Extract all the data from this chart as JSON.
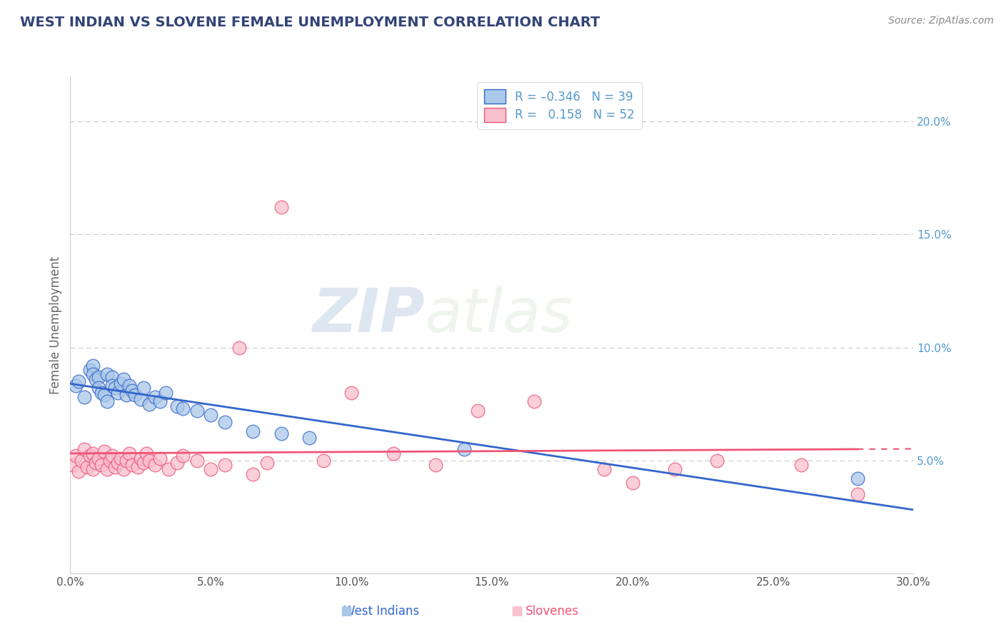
{
  "title": "WEST INDIAN VS SLOVENE FEMALE UNEMPLOYMENT CORRELATION CHART",
  "source": "Source: ZipAtlas.com",
  "ylabel": "Female Unemployment",
  "xlim": [
    0.0,
    0.3
  ],
  "ylim": [
    0.0,
    0.22
  ],
  "xticks": [
    0.0,
    0.05,
    0.1,
    0.15,
    0.2,
    0.25,
    0.3
  ],
  "xticklabels": [
    "0.0%",
    "5.0%",
    "10.0%",
    "15.0%",
    "20.0%",
    "25.0%",
    "30.0%"
  ],
  "yticks_right": [
    0.05,
    0.1,
    0.15,
    0.2
  ],
  "yticklabels_right": [
    "5.0%",
    "10.0%",
    "15.0%",
    "20.0%"
  ],
  "grid_color": "#cccccc",
  "watermark_zip": "ZIP",
  "watermark_atlas": "atlas",
  "color_blue": "#aac8e8",
  "color_pink": "#f9c0ce",
  "line_blue": "#3366cc",
  "line_pink": "#ee5577",
  "bg_color": "#ffffff",
  "title_color": "#334477",
  "source_color": "#888888",
  "right_tick_color": "#5599cc",
  "west_indians_x": [
    0.002,
    0.003,
    0.005,
    0.007,
    0.008,
    0.008,
    0.009,
    0.01,
    0.01,
    0.011,
    0.012,
    0.013,
    0.013,
    0.015,
    0.015,
    0.016,
    0.017,
    0.018,
    0.019,
    0.02,
    0.021,
    0.022,
    0.023,
    0.025,
    0.026,
    0.028,
    0.03,
    0.032,
    0.034,
    0.038,
    0.04,
    0.045,
    0.05,
    0.055,
    0.065,
    0.075,
    0.085,
    0.14,
    0.28
  ],
  "west_indians_y": [
    0.083,
    0.085,
    0.078,
    0.09,
    0.092,
    0.088,
    0.086,
    0.087,
    0.082,
    0.08,
    0.079,
    0.088,
    0.076,
    0.087,
    0.083,
    0.082,
    0.08,
    0.084,
    0.086,
    0.079,
    0.083,
    0.081,
    0.079,
    0.077,
    0.082,
    0.075,
    0.078,
    0.076,
    0.08,
    0.074,
    0.073,
    0.072,
    0.07,
    0.067,
    0.063,
    0.062,
    0.06,
    0.055,
    0.042
  ],
  "slovenes_x": [
    0.001,
    0.002,
    0.003,
    0.004,
    0.005,
    0.006,
    0.007,
    0.008,
    0.008,
    0.009,
    0.01,
    0.011,
    0.012,
    0.013,
    0.014,
    0.015,
    0.016,
    0.017,
    0.018,
    0.019,
    0.02,
    0.021,
    0.022,
    0.024,
    0.025,
    0.026,
    0.027,
    0.028,
    0.03,
    0.032,
    0.035,
    0.038,
    0.04,
    0.045,
    0.05,
    0.055,
    0.06,
    0.065,
    0.07,
    0.075,
    0.09,
    0.1,
    0.115,
    0.13,
    0.145,
    0.165,
    0.19,
    0.2,
    0.215,
    0.23,
    0.26,
    0.28
  ],
  "slovenes_y": [
    0.048,
    0.052,
    0.045,
    0.05,
    0.055,
    0.047,
    0.052,
    0.046,
    0.053,
    0.049,
    0.051,
    0.048,
    0.054,
    0.046,
    0.05,
    0.052,
    0.047,
    0.049,
    0.051,
    0.046,
    0.05,
    0.053,
    0.048,
    0.047,
    0.051,
    0.049,
    0.053,
    0.05,
    0.048,
    0.051,
    0.046,
    0.049,
    0.052,
    0.05,
    0.046,
    0.048,
    0.1,
    0.044,
    0.049,
    0.162,
    0.05,
    0.08,
    0.053,
    0.048,
    0.072,
    0.076,
    0.046,
    0.04,
    0.046,
    0.05,
    0.048,
    0.035
  ]
}
